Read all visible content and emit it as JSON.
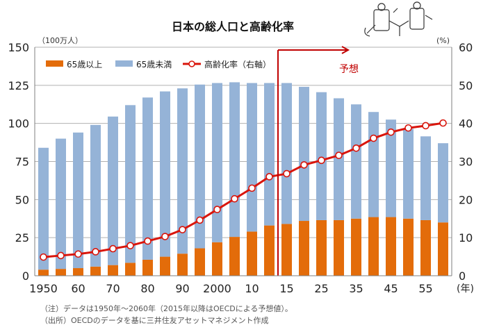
{
  "chart_data": {
    "type": "bar",
    "title": "日本の総人口と高齢化率",
    "left_unit": "（100万人）",
    "right_unit": "(%)",
    "x_unit": "(年)",
    "categories": [
      "1950",
      "1955",
      "1960",
      "1965",
      "1970",
      "1975",
      "1980",
      "1985",
      "1990",
      "1995",
      "2000",
      "2005",
      "2010",
      "2014",
      "2015",
      "2020",
      "2025",
      "2030",
      "2035",
      "2040",
      "2045",
      "2050",
      "2055",
      "2060"
    ],
    "x_tick_labels": [
      "1950",
      "60",
      "70",
      "80",
      "90",
      "2000",
      "10",
      "15",
      "25",
      "35",
      "45",
      "55"
    ],
    "x_tick_categories": [
      "1950",
      "1960",
      "1970",
      "1980",
      "1990",
      "2000",
      "2010",
      "2015",
      "2025",
      "2035",
      "2045",
      "2055"
    ],
    "series": [
      {
        "name": "65歳以上",
        "color": "#E36C0A",
        "axis": "left",
        "values": [
          4,
          4.5,
          5,
          6,
          7,
          8.5,
          10.5,
          12.5,
          14.5,
          18,
          22,
          25.5,
          29,
          33,
          34,
          36,
          36.5,
          36.5,
          37.5,
          38.5,
          38.5,
          37.5,
          36.5,
          35
        ]
      },
      {
        "name": "65歳未満",
        "color": "#95B3D7",
        "axis": "left",
        "values": [
          80,
          85.5,
          89,
          93,
          97.5,
          103.5,
          106.5,
          108.5,
          108.5,
          107.5,
          104.5,
          101.5,
          97.5,
          93.5,
          92.5,
          88,
          84,
          80,
          75,
          69,
          64,
          59,
          55,
          52
        ]
      },
      {
        "name": "高齢化率（右軸）",
        "color": "#D9150B",
        "axis": "right",
        "type": "line",
        "values": [
          4.9,
          5.3,
          5.7,
          6.3,
          7.1,
          7.9,
          9.1,
          10.3,
          12.1,
          14.6,
          17.4,
          20.2,
          23.0,
          26.0,
          26.8,
          29.1,
          30.3,
          31.6,
          33.5,
          36.1,
          37.7,
          38.8,
          39.4,
          40.1
        ]
      }
    ],
    "y_left": {
      "min": 0,
      "max": 150,
      "ticks": [
        0,
        25,
        50,
        75,
        100,
        125,
        150
      ]
    },
    "y_right": {
      "min": 0,
      "max": 60,
      "ticks": [
        0,
        10,
        20,
        30,
        40,
        50,
        60
      ]
    },
    "forecast_label": "予想",
    "forecast_start_category": "2014",
    "grid": true,
    "legend_position": "top-left"
  },
  "notes": [
    "（注）データは1950年～2060年（2015年以降はOECDによる予想値）。",
    "（出所）OECDのデータを基に三井住友アセットマネジメント作成"
  ]
}
